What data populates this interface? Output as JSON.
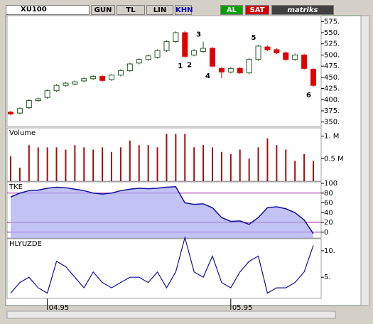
{
  "toolbar": {
    "symbol": "XU100",
    "buttons": [
      "GUN",
      "TL",
      "LIN",
      "KHN"
    ],
    "buy": "AL",
    "sell": "SAT",
    "brand": "matriks"
  },
  "chart_data": [
    {
      "type": "candlestick",
      "categories": [
        null,
        null,
        null,
        null,
        "04.95",
        null,
        null,
        null,
        null,
        null,
        null,
        null,
        null,
        null,
        null,
        null,
        null,
        null,
        null,
        null,
        null,
        null,
        null,
        null,
        "05.95",
        null,
        null,
        null,
        null,
        null,
        null,
        null,
        null,
        null
      ],
      "open": [
        372,
        370,
        382,
        398,
        405,
        420,
        432,
        435,
        442,
        447,
        452,
        445,
        455,
        465,
        482,
        490,
        495,
        510,
        530,
        550,
        500,
        508,
        515,
        470,
        462,
        470,
        460,
        490,
        518,
        512,
        505,
        490,
        500,
        468
      ],
      "high": [
        375,
        383,
        401,
        405,
        423,
        435,
        440,
        443,
        450,
        455,
        455,
        458,
        468,
        483,
        493,
        501,
        513,
        533,
        553,
        555,
        513,
        530,
        518,
        473,
        473,
        473,
        493,
        523,
        521,
        515,
        508,
        503,
        503,
        471
      ],
      "low": [
        365,
        367,
        379,
        395,
        402,
        417,
        429,
        432,
        439,
        444,
        440,
        442,
        452,
        462,
        479,
        487,
        492,
        507,
        527,
        494,
        497,
        505,
        472,
        448,
        459,
        457,
        457,
        487,
        509,
        502,
        487,
        487,
        467,
        429
      ],
      "close": [
        368,
        380,
        398,
        402,
        420,
        432,
        437,
        440,
        447,
        452,
        443,
        455,
        465,
        480,
        490,
        498,
        510,
        530,
        550,
        497,
        510,
        515,
        475,
        462,
        470,
        460,
        490,
        520,
        512,
        505,
        490,
        500,
        470,
        432
      ],
      "up_color": "#ffffff",
      "down_color": "#e00000",
      "outline_color": "#1e5a1e",
      "ylim": [
        340,
        585
      ],
      "yticks": [
        {
          "value": 350,
          "label": "350."
        },
        {
          "value": 375,
          "label": "375."
        },
        {
          "value": 400,
          "label": "400."
        },
        {
          "value": 425,
          "label": "425."
        },
        {
          "value": 450,
          "label": "450."
        },
        {
          "value": 475,
          "label": "475."
        },
        {
          "value": 500,
          "label": "500."
        },
        {
          "value": 525,
          "label": "525."
        },
        {
          "value": 550,
          "label": "550."
        },
        {
          "value": 575,
          "label": "575."
        }
      ],
      "annotations": [
        {
          "text": "1",
          "index": 19,
          "side": "below"
        },
        {
          "text": "2",
          "index": 20,
          "side": "below"
        },
        {
          "text": "3",
          "index": 21,
          "side": "above"
        },
        {
          "text": "4",
          "index": 22,
          "side": "below"
        },
        {
          "text": "5",
          "index": 27,
          "side": "above"
        },
        {
          "text": "6",
          "index": 33,
          "side": "below"
        }
      ]
    },
    {
      "type": "bar",
      "title": "Volume",
      "color": "#a01010",
      "values": [
        0.55,
        0.3,
        0.8,
        0.75,
        0.75,
        0.75,
        0.7,
        0.8,
        0.75,
        0.7,
        0.75,
        0.65,
        0.75,
        0.9,
        0.8,
        0.8,
        0.75,
        1.05,
        1.05,
        1.05,
        0.75,
        0.8,
        0.75,
        0.65,
        0.6,
        0.7,
        0.5,
        0.75,
        0.95,
        0.8,
        0.7,
        0.45,
        0.6,
        0.45
      ],
      "ylim": [
        0,
        1.15
      ],
      "yticks": [
        {
          "value": 0.5,
          "label": "0.5 M"
        },
        {
          "value": 1,
          "label": "1. M"
        }
      ]
    },
    {
      "type": "area",
      "title": "TKE",
      "color": "#1010a0",
      "fill": "#a8a8f0",
      "values": [
        72,
        80,
        85,
        86,
        90,
        92,
        91,
        88,
        85,
        80,
        78,
        80,
        85,
        88,
        90,
        89,
        90,
        92,
        93,
        60,
        57,
        58,
        50,
        30,
        22,
        23,
        16,
        30,
        50,
        52,
        48,
        40,
        25,
        -3
      ],
      "reference_lines": [
        80,
        20,
        0
      ],
      "reference_color": "#a020a0",
      "ylim": [
        -12,
        100
      ],
      "yticks": [
        0,
        20,
        40,
        60,
        80,
        100
      ]
    },
    {
      "type": "line",
      "title": "HLYUZDE",
      "color": "#1010a0",
      "values": [
        2,
        4,
        5,
        3,
        2,
        8,
        7,
        5,
        3,
        6,
        4,
        3,
        4,
        5,
        5,
        4,
        6,
        3,
        6,
        12.5,
        6,
        5,
        9,
        4,
        3,
        6,
        8,
        9,
        2,
        3,
        3,
        4,
        6,
        11
      ],
      "ylim": [
        1,
        12
      ],
      "yticks": [
        {
          "value": 5,
          "label": "5."
        },
        {
          "value": 10,
          "label": "10."
        }
      ]
    }
  ]
}
